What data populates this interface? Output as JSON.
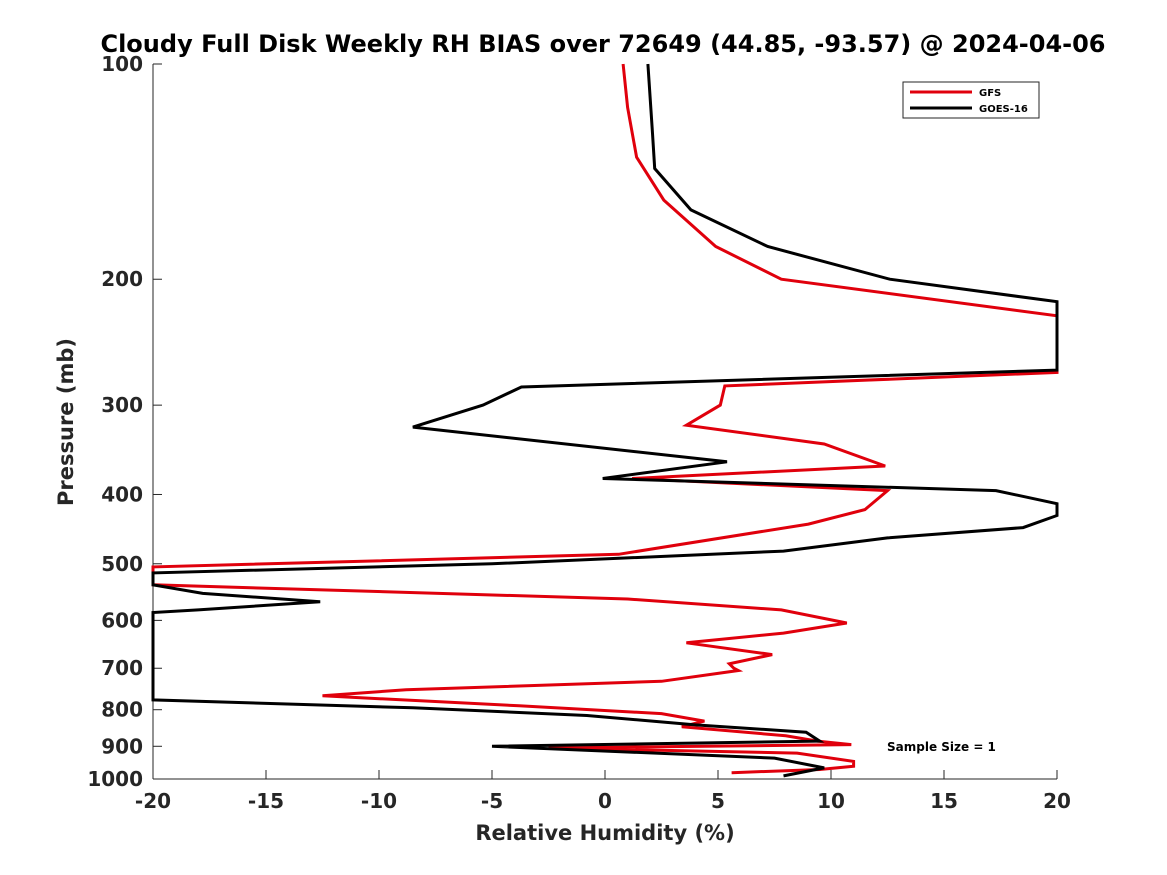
{
  "chart_data": {
    "type": "line",
    "title": "Cloudy Full Disk Weekly RH BIAS over 72649 (44.85, -93.57) @ 2024-04-06",
    "xlabel": "Relative Humidity (%)",
    "ylabel": "Pressure (mb)",
    "xlim": [
      -20,
      20
    ],
    "ylim": [
      100,
      1000
    ],
    "yscale": "log",
    "yreversed": true,
    "grid": false,
    "legend_position": "top-right",
    "xticks": [
      -20,
      -15,
      -10,
      -5,
      0,
      5,
      10,
      15,
      20
    ],
    "yticks": [
      100,
      200,
      300,
      400,
      500,
      600,
      700,
      800,
      900,
      1000
    ],
    "annotation": "Sample Size = 1",
    "series": [
      {
        "name": "GFS",
        "color": "#e0000c",
        "points": [
          [
            0.8,
            100
          ],
          [
            1.0,
            115
          ],
          [
            1.4,
            135
          ],
          [
            2.6,
            155
          ],
          [
            4.9,
            180
          ],
          [
            7.8,
            200
          ],
          [
            20,
            225
          ],
          [
            20,
            270
          ],
          [
            5.3,
            282
          ],
          [
            5.1,
            300
          ],
          [
            3.6,
            320
          ],
          [
            9.7,
            340
          ],
          [
            12.4,
            365
          ],
          [
            1.2,
            380
          ],
          [
            12.5,
            395
          ],
          [
            11.5,
            420
          ],
          [
            9.0,
            440
          ],
          [
            0.6,
            485
          ],
          [
            -20,
            505
          ],
          [
            -20,
            535
          ],
          [
            1.0,
            560
          ],
          [
            7.8,
            580
          ],
          [
            10.7,
            605
          ],
          [
            7.9,
            625
          ],
          [
            3.6,
            645
          ],
          [
            7.4,
            670
          ],
          [
            5.5,
            690
          ],
          [
            5.7,
            700
          ],
          [
            5.9,
            705
          ],
          [
            2.5,
            730
          ],
          [
            -8.8,
            750
          ],
          [
            -12.5,
            765
          ],
          [
            -3.8,
            790
          ],
          [
            2.5,
            810
          ],
          [
            4.4,
            830
          ],
          [
            3.4,
            845
          ],
          [
            8.0,
            870
          ],
          [
            9.4,
            885
          ],
          [
            10.9,
            895
          ],
          [
            -2.5,
            905
          ],
          [
            8.5,
            920
          ],
          [
            11.0,
            945
          ],
          [
            11.0,
            960
          ],
          [
            9.5,
            970
          ],
          [
            5.6,
            980
          ]
        ]
      },
      {
        "name": "GOES-16",
        "color": "#000000",
        "points": [
          [
            1.9,
            100
          ],
          [
            2.1,
            125
          ],
          [
            2.2,
            140
          ],
          [
            3.8,
            160
          ],
          [
            7.2,
            180
          ],
          [
            12.6,
            200
          ],
          [
            20,
            215
          ],
          [
            20,
            268
          ],
          [
            -3.7,
            283
          ],
          [
            -5.4,
            300
          ],
          [
            -8.5,
            322
          ],
          [
            5.4,
            360
          ],
          [
            -0.1,
            380
          ],
          [
            17.3,
            395
          ],
          [
            20,
            412
          ],
          [
            20,
            428
          ],
          [
            18.5,
            445
          ],
          [
            12.5,
            460
          ],
          [
            7.9,
            480
          ],
          [
            -5.0,
            500
          ],
          [
            -20,
            515
          ],
          [
            -20,
            535
          ],
          [
            -17.8,
            550
          ],
          [
            -12.6,
            565
          ],
          [
            -18,
            580
          ],
          [
            -20,
            585
          ],
          [
            -20,
            775
          ],
          [
            -8.5,
            795
          ],
          [
            -0.8,
            815
          ],
          [
            4.0,
            840
          ],
          [
            8.9,
            860
          ],
          [
            9.5,
            885
          ],
          [
            -5.0,
            900
          ],
          [
            7.5,
            935
          ],
          [
            9.7,
            965
          ],
          [
            7.9,
            990
          ]
        ]
      }
    ]
  }
}
